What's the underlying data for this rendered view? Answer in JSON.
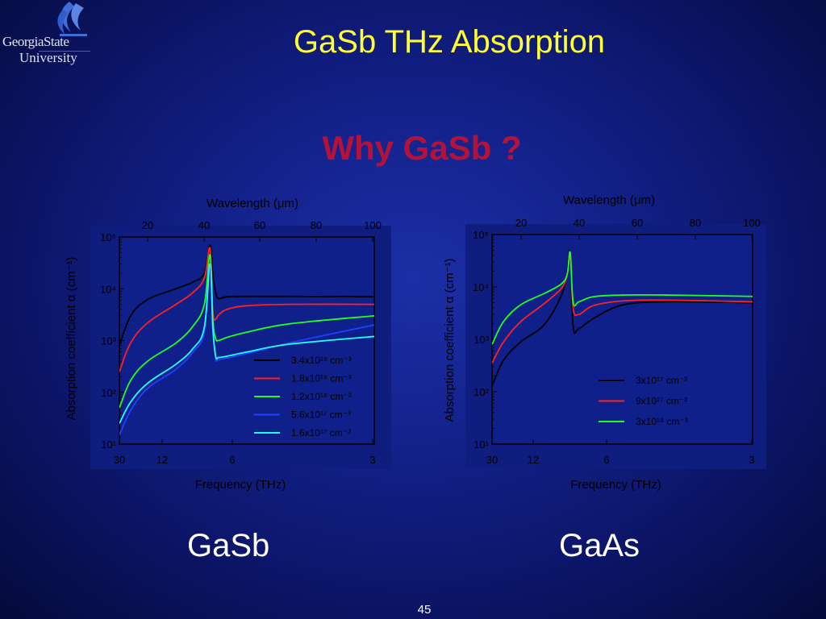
{
  "slide": {
    "title": "GaSb THz Absorption",
    "subtitle": "Why GaSb ?",
    "caption_left": "GaSb",
    "caption_right": "GaAs",
    "page_number": "45",
    "logo_line1": "GeorgiaState",
    "logo_line2": "University"
  },
  "chart_data": [
    {
      "type": "line",
      "name": "GaSb",
      "xlabel": "Frequency (THz)",
      "x2label": "Wavelength (μm)",
      "ylabel": "Absorption coefficient α (cm⁻¹)",
      "x_ticks": [
        "30",
        "12",
        "6",
        "3"
      ],
      "x2_ticks": [
        "20",
        "40",
        "60",
        "80",
        "100"
      ],
      "y_ticks": [
        "10¹",
        "10²",
        "10³",
        "10⁴",
        "10⁵"
      ],
      "yscale": "log",
      "ylim": [
        10,
        100000
      ],
      "xlim_wavelength_um": [
        10,
        100
      ],
      "legend": "right",
      "series": [
        {
          "name": "3.4x10¹⁸ cm⁻³",
          "color": "#000000",
          "x": [
            10,
            14,
            20,
            30,
            36,
            40,
            42,
            43,
            44,
            45,
            48,
            55,
            70,
            100
          ],
          "y": [
            800,
            3000,
            6200,
            10000,
            13500,
            20000,
            70000,
            18000,
            8500,
            6500,
            7000,
            7100,
            7100,
            7000
          ]
        },
        {
          "name": "1.8x10¹⁸ cm⁻³",
          "color": "#ff2020",
          "x": [
            10,
            14,
            20,
            30,
            36,
            40,
            42,
            43,
            44,
            45,
            48,
            55,
            70,
            100
          ],
          "y": [
            250,
            900,
            2200,
            5000,
            8500,
            16000,
            60000,
            3500,
            2600,
            3100,
            4000,
            4700,
            5000,
            5000
          ]
        },
        {
          "name": "1.2x10¹⁸ cm⁻³",
          "color": "#20ff20",
          "x": [
            10,
            14,
            20,
            30,
            36,
            40,
            42,
            43,
            44,
            45,
            48,
            55,
            70,
            100
          ],
          "y": [
            50,
            170,
            400,
            900,
            1900,
            5000,
            45000,
            2500,
            1100,
            1000,
            1150,
            1450,
            2100,
            3000
          ]
        },
        {
          "name": "5.6x10¹⁷ cm⁻³",
          "color": "#2040ff",
          "x": [
            10,
            14,
            20,
            30,
            36,
            40,
            42,
            43,
            44,
            45,
            48,
            55,
            70,
            100
          ],
          "y": [
            15,
            45,
            120,
            280,
            600,
            1500,
            30000,
            1600,
            450,
            430,
            460,
            560,
            900,
            2000
          ]
        },
        {
          "name": "1.6x10¹⁷ cm⁻³",
          "color": "#20ffff",
          "x": [
            10,
            14,
            20,
            30,
            36,
            40,
            42,
            43,
            44,
            45,
            48,
            55,
            70,
            100
          ],
          "y": [
            25,
            65,
            150,
            350,
            700,
            1800,
            30000,
            1800,
            500,
            470,
            500,
            600,
            850,
            1200
          ]
        }
      ]
    },
    {
      "type": "line",
      "name": "GaAs",
      "xlabel": "Frequency (THz)",
      "x2label": "Wavelength (μm)",
      "ylabel": "Absorption coefficient α (cm⁻¹)",
      "x_ticks": [
        "30",
        "12",
        "6",
        "3"
      ],
      "x2_ticks": [
        "20",
        "40",
        "60",
        "80",
        "100"
      ],
      "y_ticks": [
        "10¹",
        "10²",
        "10³",
        "10⁴",
        "10⁵"
      ],
      "yscale": "log",
      "ylim": [
        10,
        100000
      ],
      "xlim_wavelength_um": [
        10,
        100
      ],
      "legend": "right",
      "series": [
        {
          "name": "3x10¹⁷ cm⁻³",
          "color": "#000000",
          "x": [
            10,
            14,
            20,
            28,
            34,
            36,
            37,
            38,
            40,
            45,
            55,
            70,
            100
          ],
          "y": [
            130,
            400,
            900,
            1900,
            7000,
            20000,
            45000,
            1800,
            1600,
            2500,
            4500,
            5200,
            5000
          ]
        },
        {
          "name": "9x10¹⁷ cm⁻³",
          "color": "#ff2020",
          "x": [
            10,
            14,
            20,
            28,
            34,
            36,
            37,
            38,
            40,
            45,
            55,
            70,
            100
          ],
          "y": [
            350,
            900,
            2200,
            4800,
            9500,
            18000,
            45000,
            4000,
            3000,
            4400,
            5400,
            5600,
            5200
          ]
        },
        {
          "name": "3x10¹⁸ cm⁻³",
          "color": "#20ff20",
          "x": [
            10,
            14,
            20,
            28,
            34,
            36,
            37,
            38,
            40,
            45,
            55,
            70,
            100
          ],
          "y": [
            800,
            2200,
            4600,
            7500,
            11500,
            18000,
            45000,
            5200,
            5200,
            6500,
            7000,
            7000,
            6600
          ]
        }
      ]
    }
  ]
}
